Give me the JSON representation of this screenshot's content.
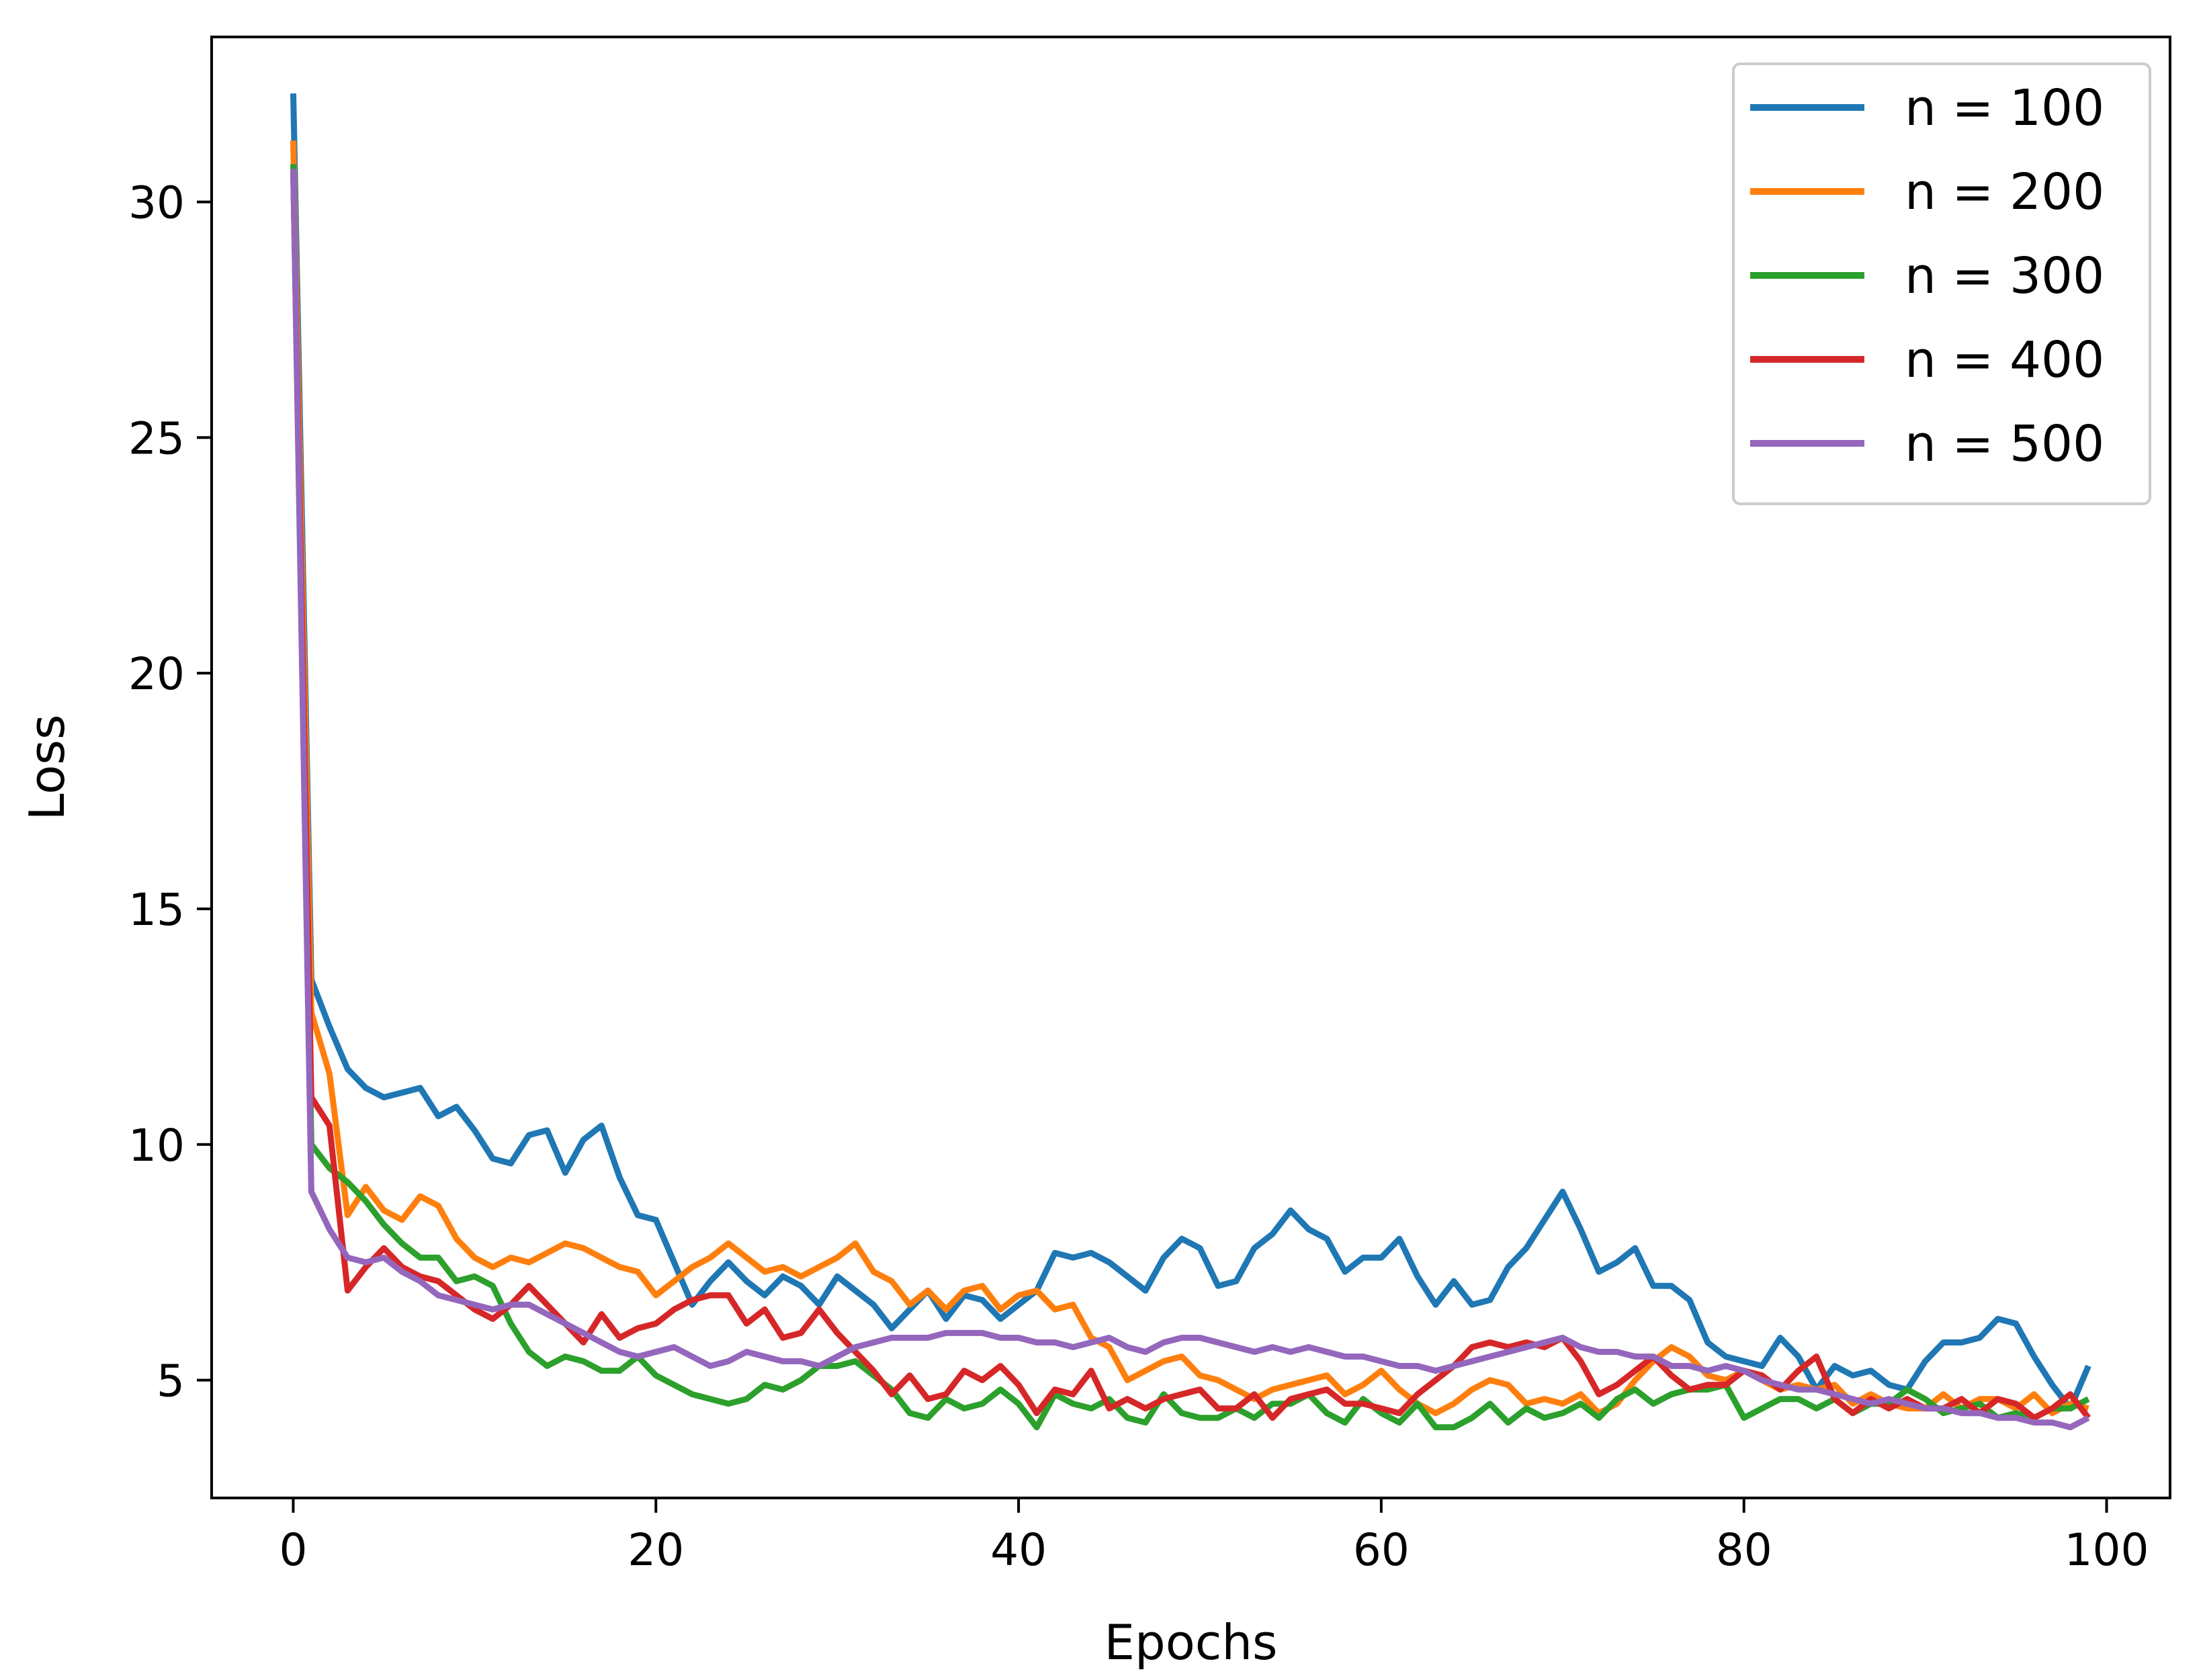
{
  "chart_data": {
    "type": "line",
    "xlabel": "Epochs",
    "ylabel": "Loss",
    "xlim": [
      -4.5,
      103.5
    ],
    "ylim": [
      2.5,
      33.5
    ],
    "xticks": [
      0,
      20,
      40,
      60,
      80,
      100
    ],
    "yticks": [
      5,
      10,
      15,
      20,
      25,
      30
    ],
    "grid": false,
    "legend_position": "top-right",
    "x": [
      0,
      1,
      2,
      3,
      4,
      5,
      6,
      7,
      8,
      9,
      10,
      11,
      12,
      13,
      14,
      15,
      16,
      17,
      18,
      19,
      20,
      21,
      22,
      23,
      24,
      25,
      26,
      27,
      28,
      29,
      30,
      31,
      32,
      33,
      34,
      35,
      36,
      37,
      38,
      39,
      40,
      41,
      42,
      43,
      44,
      45,
      46,
      47,
      48,
      49,
      50,
      51,
      52,
      53,
      54,
      55,
      56,
      57,
      58,
      59,
      60,
      61,
      62,
      63,
      64,
      65,
      66,
      67,
      68,
      69,
      70,
      71,
      72,
      73,
      74,
      75,
      76,
      77,
      78,
      79,
      80,
      81,
      82,
      83,
      84,
      85,
      86,
      87,
      88,
      89,
      90,
      91,
      92,
      93,
      94,
      95,
      96,
      97,
      98,
      99
    ],
    "series": [
      {
        "name": "n = 100",
        "color": "#1f77b4",
        "values": [
          32.3,
          13.5,
          12.5,
          11.6,
          11.2,
          11.0,
          11.1,
          11.2,
          10.6,
          10.8,
          10.3,
          9.7,
          9.6,
          10.2,
          10.3,
          9.4,
          10.1,
          10.4,
          9.3,
          8.5,
          8.4,
          7.5,
          6.6,
          7.1,
          7.5,
          7.1,
          6.8,
          7.2,
          7.0,
          6.6,
          7.2,
          6.9,
          6.6,
          6.1,
          6.5,
          6.9,
          6.3,
          6.8,
          6.7,
          6.3,
          6.6,
          6.9,
          7.7,
          7.6,
          7.7,
          7.5,
          7.2,
          6.9,
          7.6,
          8.0,
          7.8,
          7.0,
          7.1,
          7.8,
          8.1,
          8.6,
          8.2,
          8.0,
          7.3,
          7.6,
          7.6,
          8.0,
          7.2,
          6.6,
          7.1,
          6.6,
          6.7,
          7.4,
          7.8,
          8.4,
          9.0,
          8.2,
          7.3,
          7.5,
          7.8,
          7.0,
          7.0,
          6.7,
          5.8,
          5.5,
          5.4,
          5.3,
          5.9,
          5.5,
          4.8,
          5.3,
          5.1,
          5.2,
          4.9,
          4.8,
          5.4,
          5.8,
          5.8,
          5.9,
          6.3,
          6.2,
          5.5,
          4.9,
          4.4,
          5.3
        ]
      },
      {
        "name": "n = 200",
        "color": "#ff7f0e",
        "values": [
          31.3,
          12.8,
          11.5,
          8.5,
          9.1,
          8.6,
          8.4,
          8.9,
          8.7,
          8.0,
          7.6,
          7.4,
          7.6,
          7.5,
          7.7,
          7.9,
          7.8,
          7.6,
          7.4,
          7.3,
          6.8,
          7.1,
          7.4,
          7.6,
          7.9,
          7.6,
          7.3,
          7.4,
          7.2,
          7.4,
          7.6,
          7.9,
          7.3,
          7.1,
          6.6,
          6.9,
          6.5,
          6.9,
          7.0,
          6.5,
          6.8,
          6.9,
          6.5,
          6.6,
          5.9,
          5.7,
          5.0,
          5.2,
          5.4,
          5.5,
          5.1,
          5.0,
          4.8,
          4.6,
          4.8,
          4.9,
          5.0,
          5.1,
          4.7,
          4.9,
          5.2,
          4.8,
          4.5,
          4.3,
          4.5,
          4.8,
          5.0,
          4.9,
          4.5,
          4.6,
          4.5,
          4.7,
          4.3,
          4.5,
          5.0,
          5.4,
          5.7,
          5.5,
          5.1,
          5.0,
          5.2,
          5.0,
          4.8,
          4.9,
          4.8,
          4.9,
          4.5,
          4.7,
          4.5,
          4.4,
          4.4,
          4.7,
          4.4,
          4.6,
          4.6,
          4.4,
          4.7,
          4.3,
          4.5,
          4.4
        ]
      },
      {
        "name": "n = 300",
        "color": "#2ca02c",
        "values": [
          30.8,
          10.0,
          9.5,
          9.2,
          8.8,
          8.3,
          7.9,
          7.6,
          7.6,
          7.1,
          7.2,
          7.0,
          6.2,
          5.6,
          5.3,
          5.5,
          5.4,
          5.2,
          5.2,
          5.5,
          5.1,
          4.9,
          4.7,
          4.6,
          4.5,
          4.6,
          4.9,
          4.8,
          5.0,
          5.3,
          5.3,
          5.4,
          5.1,
          4.8,
          4.3,
          4.2,
          4.6,
          4.4,
          4.5,
          4.8,
          4.5,
          4.0,
          4.7,
          4.5,
          4.4,
          4.6,
          4.2,
          4.1,
          4.7,
          4.3,
          4.2,
          4.2,
          4.4,
          4.2,
          4.5,
          4.5,
          4.7,
          4.3,
          4.1,
          4.6,
          4.3,
          4.1,
          4.5,
          4.0,
          4.0,
          4.2,
          4.5,
          4.1,
          4.4,
          4.2,
          4.3,
          4.5,
          4.2,
          4.6,
          4.8,
          4.5,
          4.7,
          4.8,
          4.8,
          4.9,
          4.2,
          4.4,
          4.6,
          4.6,
          4.4,
          4.6,
          4.3,
          4.5,
          4.5,
          4.8,
          4.6,
          4.3,
          4.4,
          4.5,
          4.2,
          4.3,
          4.2,
          4.4,
          4.4,
          4.6
        ]
      },
      {
        "name": "n = 400",
        "color": "#d62728",
        "values": [
          30.6,
          11.0,
          10.4,
          6.9,
          7.4,
          7.8,
          7.4,
          7.2,
          7.1,
          6.8,
          6.5,
          6.3,
          6.6,
          7.0,
          6.6,
          6.2,
          5.8,
          6.4,
          5.9,
          6.1,
          6.2,
          6.5,
          6.7,
          6.8,
          6.8,
          6.2,
          6.5,
          5.9,
          6.0,
          6.5,
          6.0,
          5.6,
          5.2,
          4.7,
          5.1,
          4.6,
          4.7,
          5.2,
          5.0,
          5.3,
          4.9,
          4.3,
          4.8,
          4.7,
          5.2,
          4.4,
          4.6,
          4.4,
          4.6,
          4.7,
          4.8,
          4.4,
          4.4,
          4.7,
          4.2,
          4.6,
          4.7,
          4.8,
          4.5,
          4.5,
          4.4,
          4.3,
          4.7,
          5.0,
          5.3,
          5.7,
          5.8,
          5.7,
          5.8,
          5.7,
          5.9,
          5.4,
          4.7,
          4.9,
          5.2,
          5.5,
          5.1,
          4.8,
          4.9,
          4.9,
          5.2,
          5.1,
          4.8,
          5.2,
          5.5,
          4.6,
          4.3,
          4.6,
          4.4,
          4.6,
          4.4,
          4.4,
          4.6,
          4.3,
          4.6,
          4.5,
          4.2,
          4.4,
          4.7,
          4.2
        ]
      },
      {
        "name": "n = 500",
        "color": "#9467bd",
        "values": [
          30.7,
          9.0,
          8.2,
          7.6,
          7.5,
          7.6,
          7.3,
          7.1,
          6.8,
          6.7,
          6.6,
          6.5,
          6.6,
          6.6,
          6.4,
          6.2,
          6.0,
          5.8,
          5.6,
          5.5,
          5.6,
          5.7,
          5.5,
          5.3,
          5.4,
          5.6,
          5.5,
          5.4,
          5.4,
          5.3,
          5.5,
          5.7,
          5.8,
          5.9,
          5.9,
          5.9,
          6.0,
          6.0,
          6.0,
          5.9,
          5.9,
          5.8,
          5.8,
          5.7,
          5.8,
          5.9,
          5.7,
          5.6,
          5.8,
          5.9,
          5.9,
          5.8,
          5.7,
          5.6,
          5.7,
          5.6,
          5.7,
          5.6,
          5.5,
          5.5,
          5.4,
          5.3,
          5.3,
          5.2,
          5.3,
          5.4,
          5.5,
          5.6,
          5.7,
          5.8,
          5.9,
          5.7,
          5.6,
          5.6,
          5.5,
          5.5,
          5.3,
          5.3,
          5.2,
          5.3,
          5.2,
          5.0,
          4.9,
          4.8,
          4.8,
          4.7,
          4.6,
          4.5,
          4.6,
          4.5,
          4.4,
          4.4,
          4.3,
          4.3,
          4.2,
          4.2,
          4.1,
          4.1,
          4.0,
          4.2
        ]
      }
    ]
  }
}
